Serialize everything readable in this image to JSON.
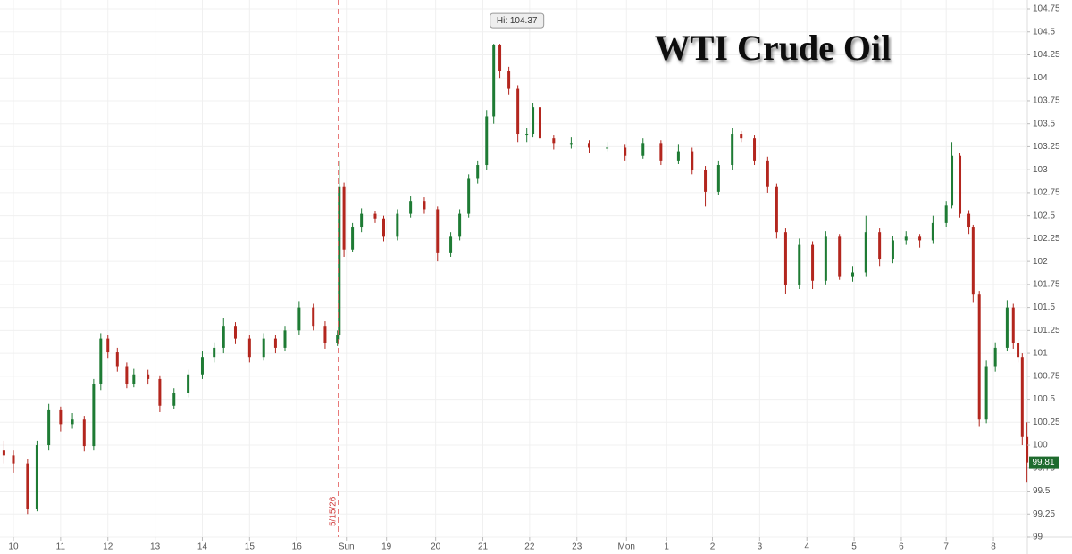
{
  "chart_data": {
    "type": "candlestick",
    "title": "WTI Crude Oil",
    "x": [
      -0.2,
      0.0,
      0.3,
      0.5,
      0.75,
      1.0,
      1.25,
      1.5,
      1.7,
      1.85,
      2.0,
      2.2,
      2.4,
      2.55,
      2.85,
      3.1,
      3.4,
      3.7,
      4.0,
      4.25,
      4.45,
      4.7,
      5.0,
      5.3,
      5.55,
      5.75,
      6.05,
      6.35,
      6.6,
      6.86,
      6.9,
      7.0,
      7.18,
      7.37,
      7.66,
      7.84,
      8.13,
      8.41,
      8.7,
      8.98,
      9.26,
      9.45,
      9.64,
      9.83,
      10.02,
      10.17,
      10.3,
      10.49,
      10.68,
      10.87,
      11.0,
      11.15,
      11.44,
      11.81,
      12.19,
      12.57,
      12.95,
      13.33,
      13.71,
      14.08,
      14.37,
      14.65,
      14.93,
      15.22,
      15.41,
      15.69,
      15.97,
      16.16,
      16.35,
      16.64,
      16.92,
      17.2,
      17.49,
      17.77,
      18.05,
      18.34,
      18.62,
      18.9,
      19.19,
      19.47,
      19.75,
      19.87,
      20.04,
      20.23,
      20.32,
      20.45,
      20.6,
      20.79,
      21.04,
      21.17,
      21.27,
      21.36,
      21.46
    ],
    "open": [
      99.95,
      99.89,
      99.8,
      99.31,
      100.0,
      100.38,
      100.23,
      100.28,
      99.99,
      100.67,
      101.16,
      101.01,
      100.86,
      100.67,
      100.77,
      100.72,
      100.43,
      100.57,
      100.77,
      100.96,
      101.06,
      101.3,
      101.16,
      100.96,
      101.16,
      101.06,
      101.25,
      101.5,
      101.3,
      101.11,
      101.2,
      102.81,
      102.13,
      102.37,
      102.52,
      102.47,
      102.27,
      102.52,
      102.66,
      102.57,
      102.09,
      102.27,
      102.52,
      102.9,
      103.05,
      103.58,
      104.36,
      104.07,
      103.88,
      103.39,
      103.39,
      103.68,
      103.34,
      103.29,
      103.29,
      103.24,
      103.24,
      103.15,
      103.29,
      103.1,
      103.2,
      103.0,
      102.76,
      103.05,
      103.39,
      103.34,
      103.1,
      102.81,
      102.32,
      101.74,
      102.18,
      101.79,
      102.27,
      101.84,
      101.88,
      102.32,
      102.03,
      102.23,
      102.27,
      102.23,
      102.42,
      102.61,
      103.15,
      102.52,
      102.37,
      101.64,
      100.28,
      100.86,
      101.06,
      101.5,
      101.11,
      100.96,
      100.09
    ],
    "high": [
      100.05,
      99.95,
      99.85,
      100.05,
      100.45,
      100.42,
      100.35,
      100.32,
      100.72,
      101.22,
      101.2,
      101.06,
      100.9,
      100.83,
      100.82,
      100.76,
      100.62,
      100.82,
      101.02,
      101.12,
      101.38,
      101.34,
      101.2,
      101.22,
      101.2,
      101.3,
      101.57,
      101.54,
      101.35,
      101.25,
      103.1,
      102.86,
      102.42,
      102.58,
      102.55,
      102.5,
      102.57,
      102.71,
      102.7,
      102.6,
      102.32,
      102.57,
      102.95,
      103.1,
      103.65,
      104.37,
      104.37,
      104.12,
      103.92,
      103.45,
      103.73,
      103.72,
      103.38,
      103.35,
      103.32,
      103.3,
      103.28,
      103.34,
      103.32,
      103.28,
      103.24,
      103.04,
      103.1,
      103.45,
      103.42,
      103.38,
      103.14,
      102.85,
      102.36,
      102.25,
      102.22,
      102.33,
      102.3,
      101.95,
      102.5,
      102.36,
      102.28,
      102.33,
      102.3,
      102.5,
      102.66,
      103.3,
      103.18,
      102.56,
      102.4,
      101.68,
      100.92,
      101.12,
      101.58,
      101.54,
      101.15,
      101.0,
      100.25
    ],
    "low": [
      99.8,
      99.7,
      99.25,
      99.28,
      99.95,
      100.15,
      100.18,
      99.93,
      99.95,
      100.6,
      100.95,
      100.8,
      100.62,
      100.63,
      100.66,
      100.36,
      100.39,
      100.52,
      100.72,
      100.9,
      101.0,
      101.1,
      100.9,
      100.92,
      101.0,
      101.02,
      101.2,
      101.25,
      101.05,
      101.08,
      101.15,
      102.05,
      102.1,
      102.32,
      102.42,
      102.22,
      102.23,
      102.48,
      102.52,
      102.0,
      102.05,
      102.23,
      102.48,
      102.85,
      103.0,
      103.5,
      104.0,
      103.82,
      103.3,
      103.3,
      103.35,
      103.28,
      103.22,
      103.23,
      103.18,
      103.2,
      103.1,
      103.12,
      103.05,
      103.06,
      102.95,
      102.6,
      102.72,
      103.0,
      103.3,
      103.05,
      102.75,
      102.25,
      101.65,
      101.7,
      101.7,
      101.75,
      101.8,
      101.78,
      101.84,
      101.95,
      101.98,
      102.18,
      102.15,
      102.2,
      102.38,
      102.58,
      102.48,
      102.3,
      101.55,
      100.2,
      100.24,
      100.8,
      101.02,
      101.05,
      100.9,
      100.0,
      99.6
    ],
    "close": [
      99.89,
      99.8,
      99.31,
      100.0,
      100.38,
      100.23,
      100.28,
      99.99,
      100.67,
      101.16,
      101.01,
      100.86,
      100.67,
      100.77,
      100.72,
      100.43,
      100.57,
      100.77,
      100.96,
      101.06,
      101.3,
      101.16,
      100.96,
      101.16,
      101.06,
      101.25,
      101.5,
      101.3,
      101.11,
      101.2,
      102.81,
      102.13,
      102.37,
      102.52,
      102.47,
      102.27,
      102.52,
      102.66,
      102.57,
      102.09,
      102.27,
      102.52,
      102.9,
      103.05,
      103.58,
      104.36,
      104.07,
      103.88,
      103.39,
      103.39,
      103.68,
      103.34,
      103.29,
      103.29,
      103.24,
      103.24,
      103.15,
      103.29,
      103.1,
      103.2,
      103.0,
      102.76,
      103.05,
      103.39,
      103.34,
      103.1,
      102.81,
      102.32,
      101.74,
      102.18,
      101.79,
      102.27,
      101.84,
      101.88,
      102.32,
      102.03,
      102.23,
      102.27,
      102.23,
      102.42,
      102.61,
      103.15,
      102.52,
      102.37,
      101.64,
      100.28,
      100.86,
      101.06,
      101.5,
      101.11,
      100.96,
      100.09,
      99.81
    ],
    "up_color": "#1e7b34",
    "down_color": "#b3261e",
    "xlim": [
      -0.2835,
      21.6
    ],
    "ylim": [
      99,
      104.75
    ],
    "yticks": [
      99,
      99.25,
      99.5,
      99.75,
      100,
      100.25,
      100.5,
      100.75,
      101,
      101.25,
      101.5,
      101.75,
      102,
      102.25,
      102.5,
      102.75,
      103,
      103.25,
      103.5,
      103.75,
      104,
      104.25,
      104.5,
      104.75
    ],
    "xticks": [
      {
        "value": 0,
        "label": "10"
      },
      {
        "value": 1,
        "label": "11"
      },
      {
        "value": 2,
        "label": "12"
      },
      {
        "value": 3,
        "label": "13"
      },
      {
        "value": 4,
        "label": "14"
      },
      {
        "value": 5,
        "label": "15"
      },
      {
        "value": 6,
        "label": "16"
      },
      {
        "value": 7.05,
        "label": "Sun"
      },
      {
        "value": 7.9,
        "label": "19"
      },
      {
        "value": 8.94,
        "label": "20"
      },
      {
        "value": 9.94,
        "label": "21"
      },
      {
        "value": 10.93,
        "label": "22"
      },
      {
        "value": 11.93,
        "label": "23"
      },
      {
        "value": 12.98,
        "label": "Mon"
      },
      {
        "value": 13.83,
        "label": "1"
      },
      {
        "value": 14.8,
        "label": "2"
      },
      {
        "value": 15.8,
        "label": "3"
      },
      {
        "value": 16.8,
        "label": "4"
      },
      {
        "value": 17.8,
        "label": "5"
      },
      {
        "value": 18.8,
        "label": "6"
      },
      {
        "value": 19.75,
        "label": "7"
      },
      {
        "value": 20.75,
        "label": "8"
      }
    ],
    "grid": true,
    "high_annotation": "Hi: 104.37",
    "session_marker": {
      "x": 6.88,
      "label": "5/15/26"
    }
  }
}
